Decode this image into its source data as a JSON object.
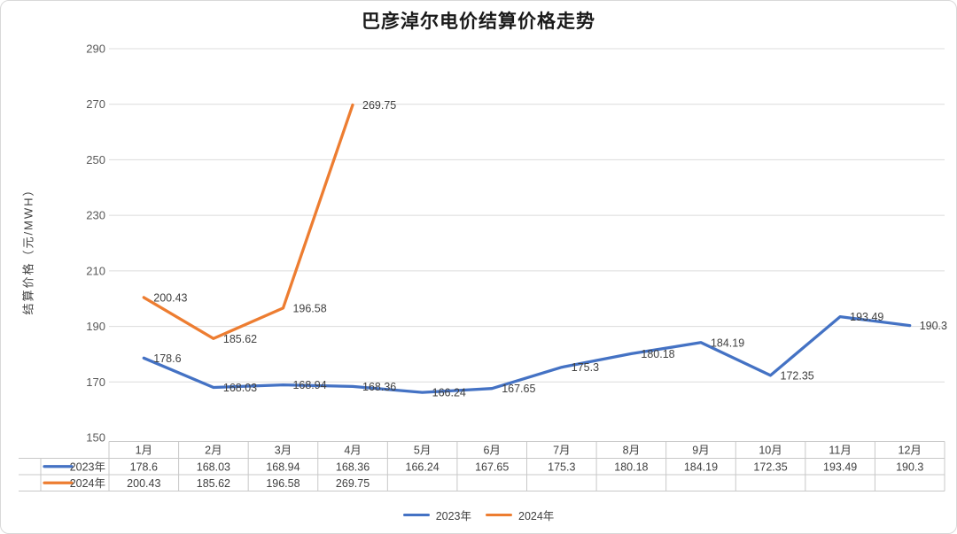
{
  "chart_data": {
    "type": "line",
    "title": "巴彦淖尔电价结算价格走势",
    "ylabel": "结算价格（元/MWH）",
    "ylim": [
      150,
      290
    ],
    "yticks": [
      150,
      170,
      190,
      210,
      230,
      250,
      270,
      290
    ],
    "categories": [
      "1月",
      "2月",
      "3月",
      "4月",
      "5月",
      "6月",
      "7月",
      "8月",
      "9月",
      "10月",
      "11月",
      "12月"
    ],
    "series": [
      {
        "name": "2023年",
        "color": "#4472C4",
        "values": [
          178.6,
          168.03,
          168.94,
          168.36,
          166.24,
          167.65,
          175.3,
          180.18,
          184.19,
          172.35,
          193.49,
          190.3
        ]
      },
      {
        "name": "2024年",
        "color": "#ED7D31",
        "values": [
          200.43,
          185.62,
          196.58,
          269.75,
          null,
          null,
          null,
          null,
          null,
          null,
          null,
          null
        ]
      }
    ],
    "grid": true,
    "legend_position": "bottom",
    "data_table": true,
    "colors": {
      "grid_line": "#DCDCDC",
      "table_border": "#C8C8C8",
      "tick_text": "#595959",
      "label_text": "#404040"
    }
  }
}
